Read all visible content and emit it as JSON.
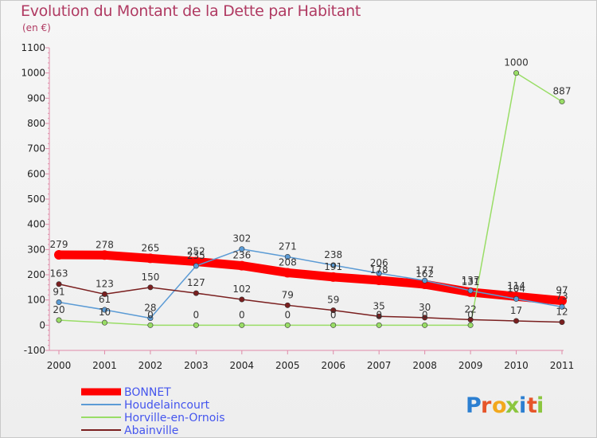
{
  "chart_data": {
    "type": "line",
    "title": "Evolution du Montant de la Dette par Habitant",
    "subtitle": "(en €)",
    "xlabel": "",
    "ylabel": "",
    "categories": [
      "2000",
      "2001",
      "2002",
      "2003",
      "2004",
      "2005",
      "2006",
      "2007",
      "2008",
      "2009",
      "2010",
      "2011"
    ],
    "ylim": [
      -100,
      1100
    ],
    "yticks": [
      -100,
      0,
      100,
      200,
      300,
      400,
      500,
      600,
      700,
      800,
      900,
      1000,
      1100
    ],
    "grid": false,
    "legend_position": "bottom-left",
    "series": [
      {
        "name": "BONNET",
        "color": "#ff0000",
        "values": [
          279,
          278,
          265,
          252,
          236,
          208,
          191,
          178,
          162,
          131,
          114,
          97
        ],
        "labels": [
          "279",
          "278",
          "265",
          "252",
          "236",
          "208",
          "191",
          "178",
          "162",
          "131",
          "114",
          "97"
        ]
      },
      {
        "name": "Houdelaincourt",
        "color": "#5b9bd5",
        "values": [
          91,
          61,
          28,
          235,
          302,
          271,
          238,
          206,
          177,
          137,
          104,
          73
        ],
        "labels": [
          "91",
          "61",
          "28",
          "235",
          "302",
          "271",
          "238",
          "206",
          "177",
          "137",
          "104",
          "73"
        ]
      },
      {
        "name": "Horville-en-Ornois",
        "color": "#99dd66",
        "values": [
          20,
          10,
          0,
          0,
          0,
          0,
          0,
          0,
          0,
          0,
          1000,
          887
        ],
        "labels": [
          "20",
          "10",
          "0",
          "0",
          "0",
          "0",
          "0",
          "0",
          "0",
          "0",
          "1000",
          "887"
        ]
      },
      {
        "name": "Abainville",
        "color": "#7a1f1f",
        "values": [
          163,
          123,
          150,
          127,
          102,
          79,
          59,
          35,
          30,
          22,
          17,
          12
        ],
        "labels": [
          "163",
          "123",
          "150",
          "127",
          "102",
          "79",
          "59",
          "35",
          "30",
          "22",
          "17",
          "12"
        ]
      }
    ]
  },
  "brand": {
    "logo_text": "Proxiti"
  }
}
